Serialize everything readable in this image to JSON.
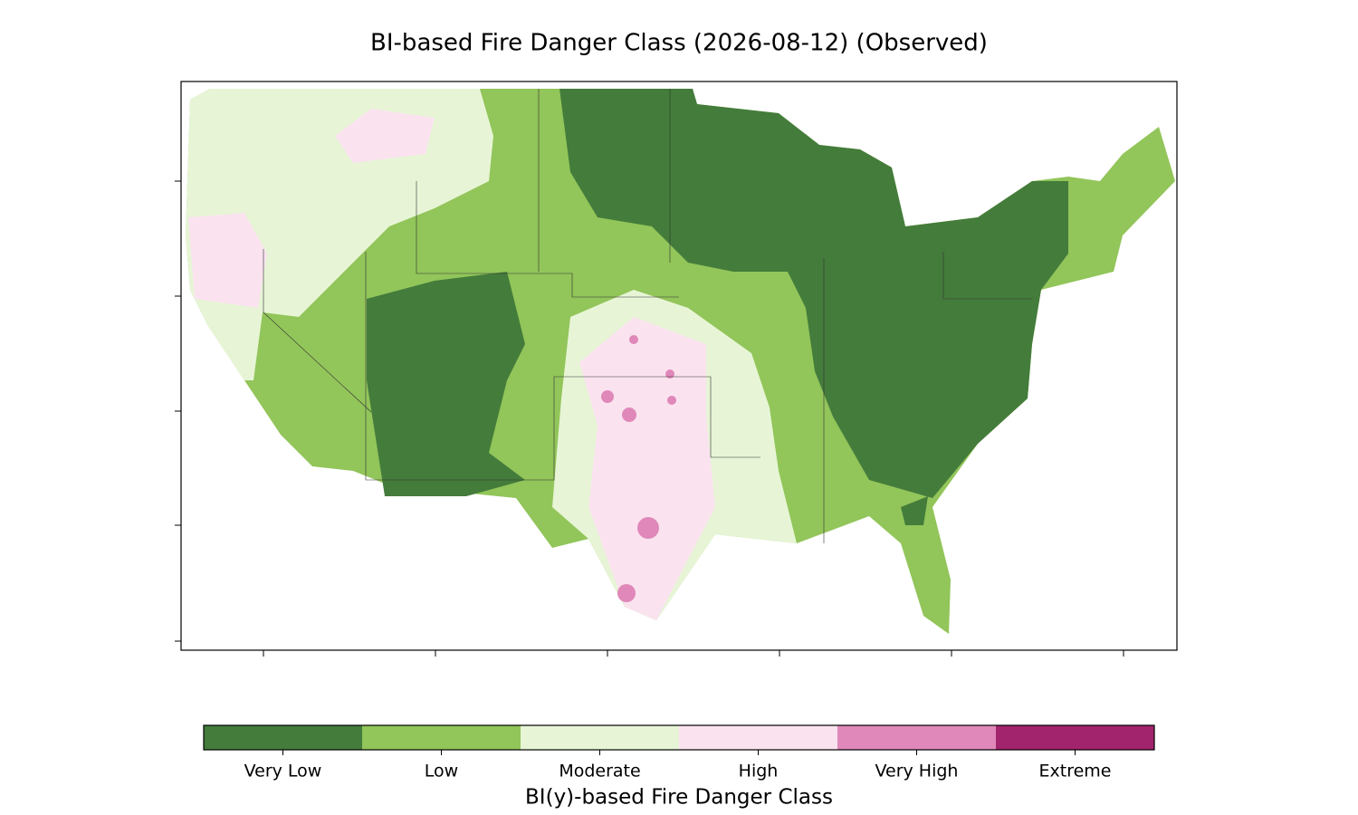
{
  "title": "BI-based Fire Danger Class (2026-08-12) (Observed)",
  "colorbar": {
    "label": "BI(y)-based Fire Danger Class",
    "classes": [
      {
        "name": "Very Low",
        "color": "#447c3b"
      },
      {
        "name": "Low",
        "color": "#92c55a"
      },
      {
        "name": "Moderate",
        "color": "#e7f5d6"
      },
      {
        "name": "High",
        "color": "#fae3ef"
      },
      {
        "name": "Very High",
        "color": "#e088b9"
      },
      {
        "name": "Extreme",
        "color": "#a2246c"
      }
    ]
  }
}
